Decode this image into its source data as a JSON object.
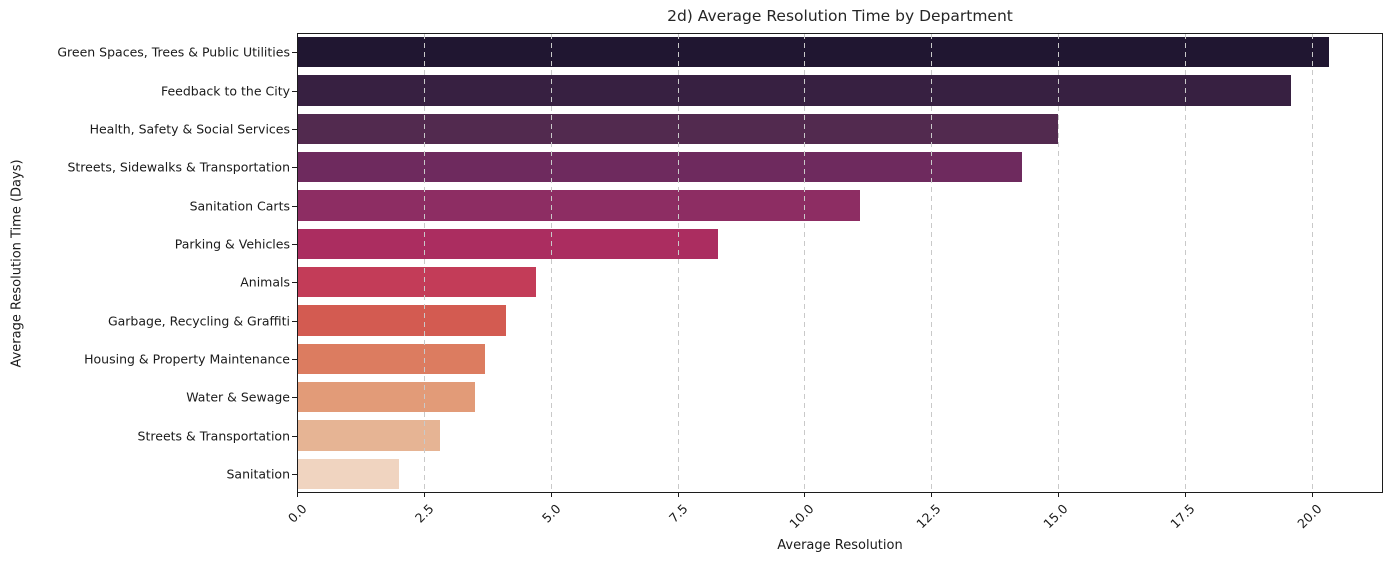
{
  "chart_data": {
    "type": "bar",
    "orientation": "horizontal",
    "title": "2d) Average Resolution Time by Department",
    "xlabel": "Average Resolution",
    "ylabel": "Average Resolution Time (Days)",
    "categories": [
      "Green Spaces, Trees & Public Utilities",
      "Feedback to the City",
      "Health, Safety & Social Services",
      "Streets, Sidewalks & Transportation",
      "Sanitation Carts",
      "Parking & Vehicles",
      "Animals",
      "Garbage, Recycling & Graffiti",
      "Housing & Property Maintenance",
      "Water & Sewage",
      "Streets & Transportation",
      "Sanitation"
    ],
    "values": [
      20.35,
      19.6,
      15.0,
      14.3,
      11.1,
      8.3,
      4.7,
      4.1,
      3.7,
      3.5,
      2.8,
      2.0
    ],
    "bar_colors": [
      "#201631",
      "#372041",
      "#522a4f",
      "#6e2a5e",
      "#8d2d63",
      "#ab2d60",
      "#c33c58",
      "#d35b51",
      "#dc7c60",
      "#e29b78",
      "#e6b494",
      "#f0d4c0"
    ],
    "xticks": [
      0.0,
      2.5,
      5.0,
      7.5,
      10.0,
      12.5,
      15.0,
      17.5,
      20.0
    ],
    "xtick_labels": [
      "0.0",
      "2.5",
      "5.0",
      "7.5",
      "10.0",
      "12.5",
      "15.0",
      "17.5",
      "20.0"
    ],
    "xlim": [
      0,
      21.4
    ],
    "grid": "vertical-dashed-above-bars",
    "legend": null
  },
  "colors": {
    "background": "#ffffff",
    "spine": "#1c1c1c",
    "grid": "#c9c9c9",
    "text": "#1a1a1a"
  }
}
